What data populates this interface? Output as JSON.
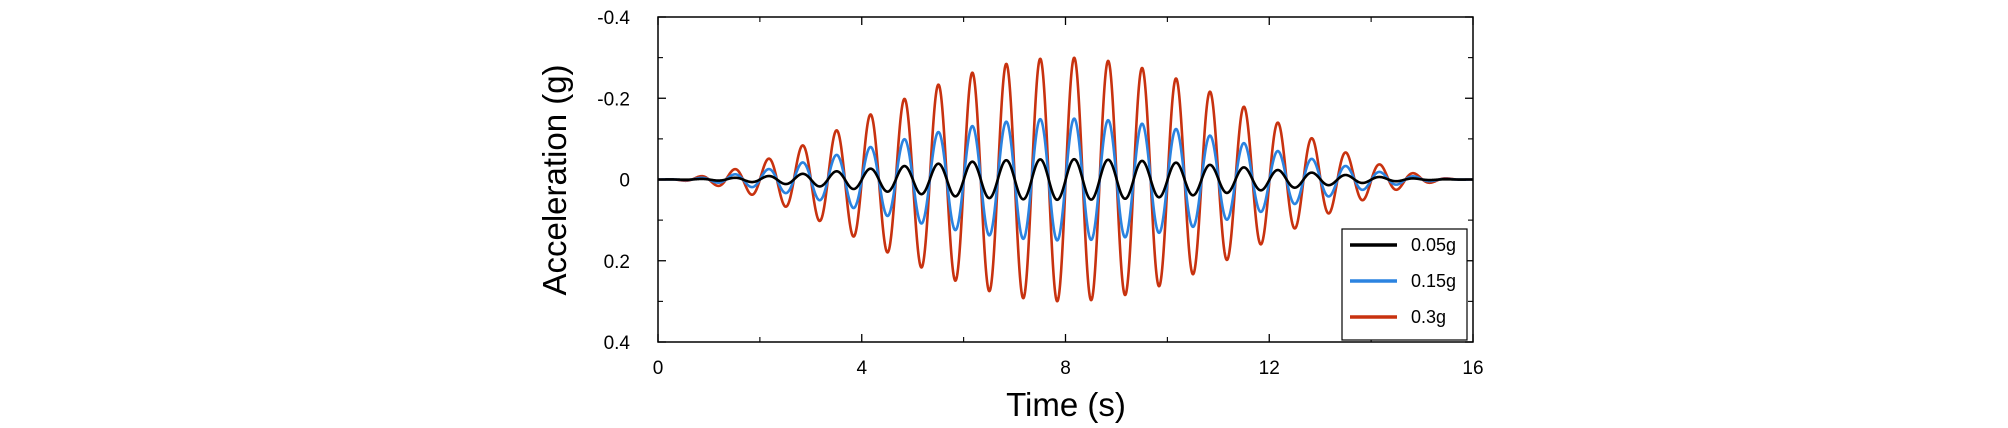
{
  "chart_data": {
    "type": "line",
    "xlabel": "Time (s)",
    "ylabel": "Acceleration (g)",
    "xlim": [
      0,
      16
    ],
    "ylim": [
      -0.4,
      0.4
    ],
    "y_inverted": true,
    "xticks": [
      0,
      4,
      8,
      12,
      16
    ],
    "xtick_labels": [
      "0",
      "4",
      "8",
      "12",
      "16"
    ],
    "yticks": [
      -0.4,
      -0.2,
      0,
      0.2,
      0.4
    ],
    "ytick_labels": [
      "-0.4",
      "-0.2",
      "0",
      "0.2",
      "0.4"
    ],
    "grid": false,
    "legend_position": "bottom-right",
    "waveform": "sinusoid with sine-squared envelope",
    "duration_s": 16,
    "oscillation_period_s": 0.667,
    "series": [
      {
        "name": "0.05g",
        "peak": 0.05,
        "color": "#000000"
      },
      {
        "name": "0.15g",
        "peak": 0.15,
        "color": "#2b83e0"
      },
      {
        "name": "0.3g",
        "peak": 0.3,
        "color": "#c8320f"
      }
    ]
  }
}
